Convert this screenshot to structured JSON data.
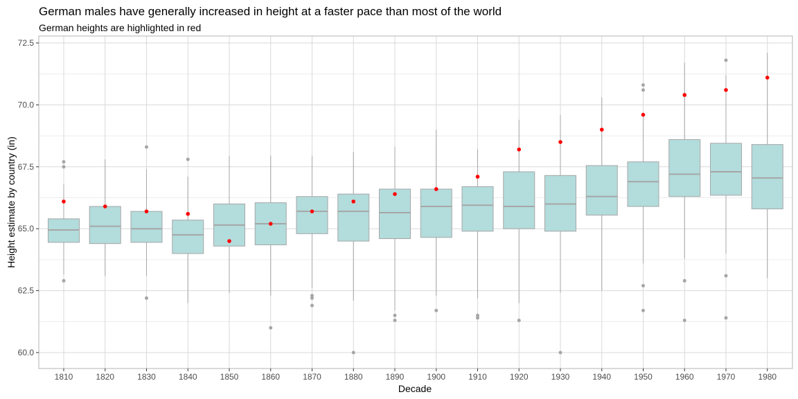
{
  "colors": {
    "box_fill": "#b3dcdc",
    "box_stroke": "#a6a6a6",
    "median": "#a6a6a6",
    "whisker": "#a6a6a6",
    "outlier": "#a6a6a6",
    "highlight": "#ff0000",
    "grid_major": "#d9d9d9",
    "grid_minor": "#ececec",
    "panel_border": "#b3b3b3"
  },
  "chart_data": {
    "type": "boxplot",
    "title": "German males have generally increased in height at a faster pace than most of the world",
    "subtitle": "German heights are highlighted in red",
    "xlabel": "Decade",
    "ylabel": "Height estimate by country (in)",
    "ylim": [
      59.6,
      72.5
    ],
    "yticks": [
      60.0,
      62.5,
      65.0,
      67.5,
      70.0,
      72.5
    ],
    "ytick_labels": [
      "60.0",
      "62.5",
      "65.0",
      "67.5",
      "70.0",
      "72.5"
    ],
    "grid": true,
    "legend": "none",
    "categories": [
      "1810",
      "1820",
      "1830",
      "1840",
      "1850",
      "1860",
      "1870",
      "1880",
      "1890",
      "1900",
      "1910",
      "1920",
      "1930",
      "1940",
      "1950",
      "1960",
      "1970",
      "1980"
    ],
    "boxes": [
      {
        "q1": 64.45,
        "median": 64.95,
        "q3": 65.4,
        "low": 63.15,
        "high": 66.8,
        "outliers": [
          62.9,
          67.5,
          67.7
        ]
      },
      {
        "q1": 64.4,
        "median": 65.1,
        "q3": 65.9,
        "low": 63.1,
        "high": 67.8,
        "outliers": []
      },
      {
        "q1": 64.45,
        "median": 65.0,
        "q3": 65.7,
        "low": 63.1,
        "high": 67.4,
        "outliers": [
          62.2,
          68.3
        ]
      },
      {
        "q1": 64.0,
        "median": 64.75,
        "q3": 65.35,
        "low": 62.0,
        "high": 67.1,
        "outliers": [
          67.8
        ]
      },
      {
        "q1": 64.3,
        "median": 65.15,
        "q3": 66.0,
        "low": 62.4,
        "high": 67.95,
        "outliers": []
      },
      {
        "q1": 64.35,
        "median": 65.2,
        "q3": 66.05,
        "low": 62.3,
        "high": 67.95,
        "outliers": [
          61.0
        ]
      },
      {
        "q1": 64.8,
        "median": 65.7,
        "q3": 66.3,
        "low": 62.6,
        "high": 67.95,
        "outliers": [
          61.9,
          62.2,
          62.3
        ]
      },
      {
        "q1": 64.5,
        "median": 65.7,
        "q3": 66.4,
        "low": 62.1,
        "high": 68.1,
        "outliers": [
          60.0
        ]
      },
      {
        "q1": 64.6,
        "median": 65.65,
        "q3": 66.6,
        "low": 61.7,
        "high": 68.3,
        "outliers": [
          61.3,
          61.5
        ]
      },
      {
        "q1": 64.65,
        "median": 65.9,
        "q3": 66.6,
        "low": 62.3,
        "high": 69.0,
        "outliers": [
          61.7
        ]
      },
      {
        "q1": 64.9,
        "median": 65.95,
        "q3": 66.7,
        "low": 62.2,
        "high": 68.2,
        "outliers": [
          61.4,
          61.5
        ]
      },
      {
        "q1": 65.0,
        "median": 65.9,
        "q3": 67.3,
        "low": 62.0,
        "high": 69.4,
        "outliers": [
          61.3
        ]
      },
      {
        "q1": 64.9,
        "median": 66.0,
        "q3": 67.15,
        "low": 62.4,
        "high": 69.6,
        "outliers": [
          60.0
        ]
      },
      {
        "q1": 65.55,
        "median": 66.3,
        "q3": 67.55,
        "low": 62.5,
        "high": 70.3,
        "outliers": []
      },
      {
        "q1": 65.9,
        "median": 66.9,
        "q3": 67.7,
        "low": 63.6,
        "high": 69.7,
        "outliers": [
          61.7,
          62.7,
          70.6,
          70.8
        ]
      },
      {
        "q1": 66.3,
        "median": 67.2,
        "q3": 68.6,
        "low": 63.8,
        "high": 71.7,
        "outliers": [
          61.3,
          62.9
        ]
      },
      {
        "q1": 66.35,
        "median": 67.3,
        "q3": 68.45,
        "low": 64.0,
        "high": 71.2,
        "outliers": [
          61.4,
          63.1,
          71.8
        ]
      },
      {
        "q1": 65.8,
        "median": 67.05,
        "q3": 68.4,
        "low": 63.0,
        "high": 72.1,
        "outliers": []
      }
    ],
    "highlight_series": {
      "values": [
        66.1,
        65.9,
        65.7,
        65.6,
        64.5,
        65.2,
        65.7,
        66.1,
        66.4,
        66.6,
        67.1,
        68.2,
        68.5,
        69.0,
        69.6,
        70.4,
        70.6,
        71.1
      ]
    }
  }
}
